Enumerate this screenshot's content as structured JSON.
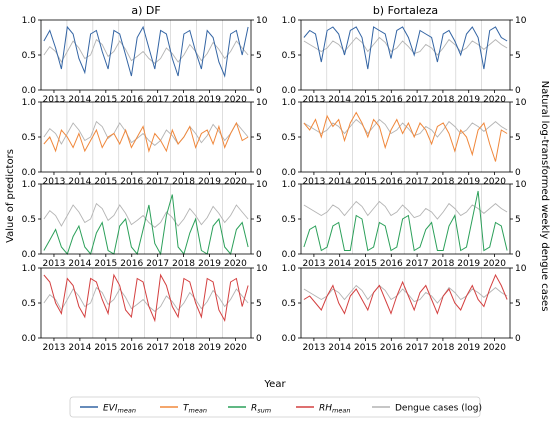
{
  "figure": {
    "ylabel_left": "Value of predictors",
    "ylabel_right": "Natural log-transformed weekly dengue cases",
    "xlabel": "Year",
    "colors": {
      "evi": "#3465a4",
      "temp": "#f0883c",
      "rain": "#2ca05a",
      "rh": "#d44040",
      "dengue": "#b4b4b4"
    }
  },
  "legend": [
    {
      "key": "evi",
      "main": "EVI",
      "sub": "mean",
      "italic": true
    },
    {
      "key": "temp",
      "main": "T",
      "sub": "mean",
      "italic": true
    },
    {
      "key": "rain",
      "main": "R",
      "sub": "sum",
      "italic": true
    },
    {
      "key": "rh",
      "main": "RH",
      "sub": "mean",
      "italic": true
    },
    {
      "key": "dengue",
      "main": "Dengue cases (log)",
      "sub": "",
      "italic": false
    }
  ],
  "chart_data": {
    "type": "line",
    "columns": [
      {
        "id": "df",
        "title": "a) DF"
      },
      {
        "id": "fortaleza",
        "title": "b) Fortaleza"
      }
    ],
    "rows": [
      "evi",
      "temp",
      "rain",
      "rh"
    ],
    "x_years": [
      "2013",
      "2014",
      "2015",
      "2016",
      "2017",
      "2018",
      "2019",
      "2020"
    ],
    "x_range": [
      2012.5,
      2020.6
    ],
    "ylim_left": [
      0.0,
      1.0
    ],
    "yticks_left": [
      "0.0",
      "0.5",
      "1.0"
    ],
    "ylim_right": [
      0,
      10
    ],
    "yticks_right": [
      "0",
      "5",
      "10"
    ],
    "vertical_gridlines": true,
    "legend_position": "bottom",
    "series": {
      "df": {
        "evi": [
          0.7,
          0.85,
          0.6,
          0.3,
          0.9,
          0.8,
          0.45,
          0.25,
          0.8,
          0.85,
          0.55,
          0.3,
          0.85,
          0.8,
          0.5,
          0.2,
          0.75,
          0.9,
          0.6,
          0.3,
          0.85,
          0.8,
          0.45,
          0.2,
          0.8,
          0.85,
          0.55,
          0.3,
          0.85,
          0.75,
          0.4,
          0.2,
          0.8,
          0.85,
          0.5,
          0.9
        ],
        "temp": [
          0.4,
          0.5,
          0.3,
          0.6,
          0.5,
          0.35,
          0.55,
          0.3,
          0.45,
          0.6,
          0.35,
          0.5,
          0.55,
          0.4,
          0.6,
          0.35,
          0.5,
          0.65,
          0.3,
          0.55,
          0.45,
          0.3,
          0.6,
          0.4,
          0.5,
          0.65,
          0.35,
          0.55,
          0.6,
          0.4,
          0.65,
          0.35,
          0.55,
          0.7,
          0.45,
          0.5
        ],
        "rain": [
          0.05,
          0.2,
          0.35,
          0.1,
          0.0,
          0.25,
          0.4,
          0.1,
          0.0,
          0.3,
          0.45,
          0.05,
          0.0,
          0.4,
          0.5,
          0.1,
          0.0,
          0.35,
          0.7,
          0.15,
          0.0,
          0.55,
          0.85,
          0.1,
          0.0,
          0.3,
          0.5,
          0.05,
          0.0,
          0.4,
          0.5,
          0.1,
          0.0,
          0.35,
          0.45,
          0.1
        ],
        "rh": [
          0.9,
          0.8,
          0.5,
          0.35,
          0.85,
          0.75,
          0.45,
          0.3,
          0.85,
          0.8,
          0.55,
          0.35,
          0.9,
          0.75,
          0.4,
          0.3,
          0.85,
          0.8,
          0.45,
          0.25,
          0.9,
          0.75,
          0.45,
          0.3,
          0.85,
          0.8,
          0.5,
          0.3,
          0.85,
          0.8,
          0.4,
          0.25,
          0.8,
          0.85,
          0.45,
          0.75
        ],
        "dengue": [
          5.0,
          6.2,
          5.5,
          4.0,
          5.5,
          7.0,
          6.0,
          4.5,
          5.0,
          7.2,
          6.5,
          4.8,
          5.5,
          7.0,
          5.8,
          4.2,
          4.8,
          5.5,
          4.5,
          3.8,
          4.5,
          6.0,
          5.2,
          4.0,
          5.0,
          6.5,
          5.5,
          4.2,
          5.2,
          6.8,
          5.8,
          4.5,
          5.5,
          7.0,
          6.0,
          5.0
        ]
      },
      "fortaleza": {
        "evi": [
          0.75,
          0.85,
          0.8,
          0.4,
          0.85,
          0.9,
          0.8,
          0.5,
          0.85,
          0.9,
          0.75,
          0.3,
          0.9,
          0.85,
          0.8,
          0.45,
          0.85,
          0.9,
          0.75,
          0.5,
          0.85,
          0.8,
          0.75,
          0.4,
          0.8,
          0.85,
          0.7,
          0.5,
          0.8,
          0.9,
          0.75,
          0.3,
          0.85,
          0.9,
          0.75,
          0.7
        ],
        "temp": [
          0.7,
          0.6,
          0.75,
          0.5,
          0.8,
          0.65,
          0.75,
          0.45,
          0.7,
          0.85,
          0.7,
          0.5,
          0.75,
          0.65,
          0.35,
          0.6,
          0.75,
          0.55,
          0.7,
          0.5,
          0.7,
          0.6,
          0.4,
          0.65,
          0.7,
          0.55,
          0.3,
          0.6,
          0.5,
          0.25,
          0.6,
          0.7,
          0.4,
          0.15,
          0.6,
          0.55
        ],
        "rain": [
          0.1,
          0.35,
          0.4,
          0.05,
          0.1,
          0.4,
          0.45,
          0.05,
          0.05,
          0.55,
          0.5,
          0.05,
          0.1,
          0.45,
          0.4,
          0.05,
          0.1,
          0.5,
          0.55,
          0.05,
          0.1,
          0.35,
          0.45,
          0.05,
          0.05,
          0.4,
          0.55,
          0.05,
          0.1,
          0.5,
          0.9,
          0.05,
          0.1,
          0.45,
          0.4,
          0.05
        ],
        "rh": [
          0.55,
          0.6,
          0.5,
          0.4,
          0.6,
          0.75,
          0.5,
          0.35,
          0.6,
          0.7,
          0.55,
          0.4,
          0.65,
          0.75,
          0.55,
          0.35,
          0.6,
          0.8,
          0.6,
          0.4,
          0.65,
          0.75,
          0.55,
          0.35,
          0.6,
          0.7,
          0.5,
          0.4,
          0.6,
          0.75,
          0.55,
          0.45,
          0.7,
          0.9,
          0.75,
          0.55
        ],
        "dengue": [
          7.0,
          6.5,
          6.0,
          5.5,
          6.0,
          7.0,
          6.5,
          5.5,
          6.5,
          7.5,
          6.8,
          5.5,
          6.5,
          7.5,
          6.8,
          5.5,
          6.0,
          7.0,
          6.2,
          5.2,
          5.5,
          6.5,
          6.0,
          5.0,
          6.0,
          7.2,
          6.5,
          5.5,
          6.0,
          7.0,
          6.5,
          5.8,
          6.5,
          7.2,
          6.5,
          6.0
        ]
      }
    }
  }
}
